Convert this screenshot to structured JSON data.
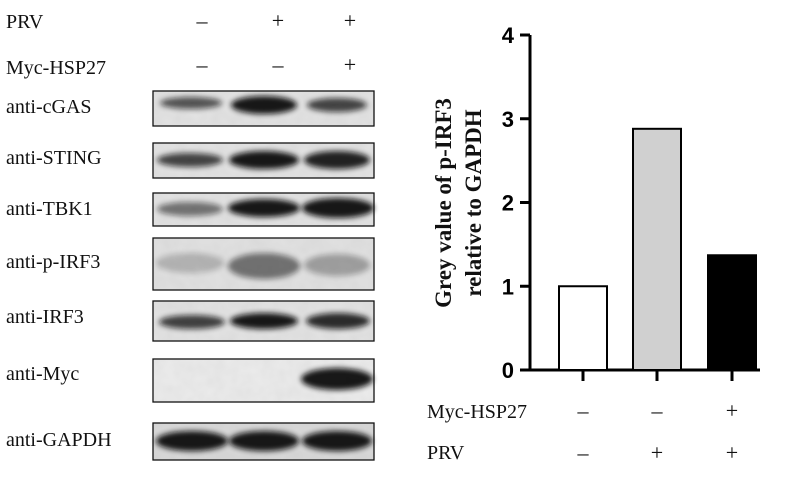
{
  "western_blot": {
    "conditions": [
      {
        "label": "PRV",
        "marks": [
          "–",
          "+",
          "+"
        ]
      },
      {
        "label": "Myc-HSP27",
        "marks": [
          "–",
          "–",
          "+"
        ]
      }
    ],
    "blots": [
      {
        "label": "anti-cGAS",
        "intensity": [
          0.7,
          1.0,
          0.78
        ]
      },
      {
        "label": "anti-STING",
        "intensity": [
          0.78,
          1.0,
          0.95
        ]
      },
      {
        "label": "anti-TBK1",
        "intensity": [
          0.55,
          1.0,
          1.0
        ]
      },
      {
        "label": "anti-p-IRF3",
        "intensity": [
          0.22,
          0.55,
          0.32
        ]
      },
      {
        "label": "anti-IRF3",
        "intensity": [
          0.8,
          1.0,
          0.9
        ]
      },
      {
        "label": "anti-Myc",
        "intensity": [
          0.0,
          0.0,
          1.0
        ]
      },
      {
        "label": "anti-GAPDH",
        "intensity": [
          1.0,
          1.0,
          1.0
        ]
      }
    ]
  },
  "chart_data": {
    "type": "bar",
    "ylabel_line1": "Grey value of p-IRF3",
    "ylabel_line2": "relative to GAPDH",
    "ylim": [
      0,
      4
    ],
    "yticks": [
      "0",
      "1",
      "2",
      "3",
      "4"
    ],
    "values": [
      1.0,
      2.88,
      1.37
    ],
    "bar_colors": [
      "#ffffff",
      "#d0d0d0",
      "#000000"
    ],
    "conditions": [
      {
        "label": "Myc-HSP27",
        "marks": [
          "–",
          "–",
          "+"
        ]
      },
      {
        "label": "PRV",
        "marks": [
          "–",
          "+",
          "+"
        ]
      }
    ]
  }
}
